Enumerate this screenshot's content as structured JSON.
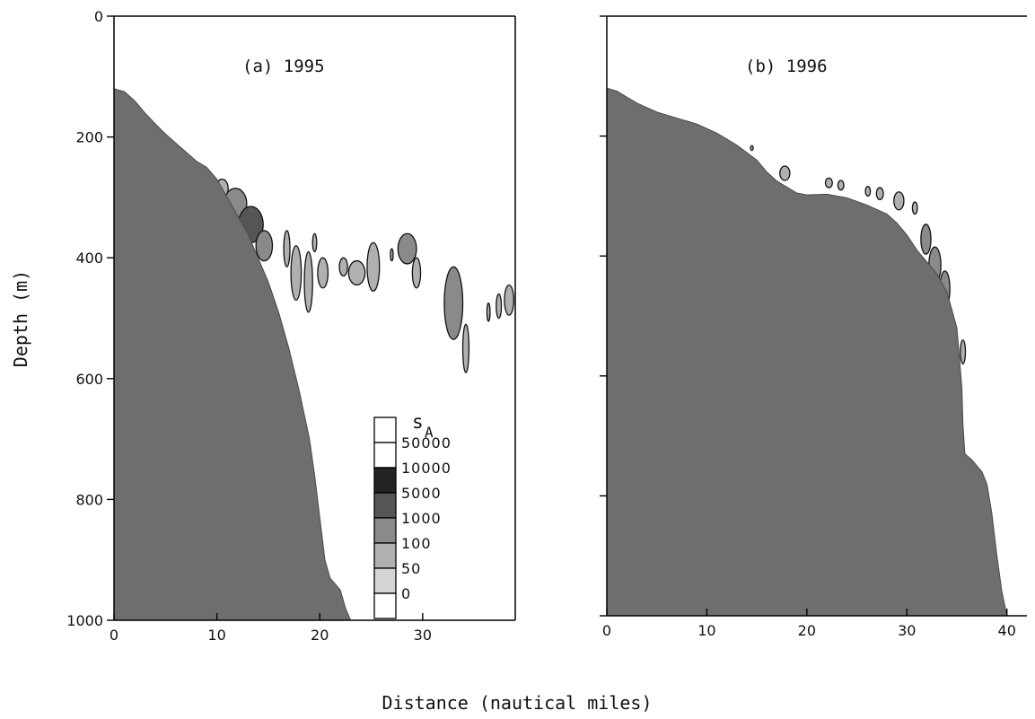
{
  "chart_data": [
    {
      "type": "area",
      "title": "(a) 1995",
      "xlabel": "Distance (nautical miles)",
      "ylabel": "Depth (m)",
      "xlim": [
        0,
        39
      ],
      "ylim": [
        0,
        1000
      ],
      "y_inverted": true,
      "x_ticks": [
        0,
        10,
        20,
        30
      ],
      "y_ticks": [
        0,
        200,
        400,
        600,
        800,
        1000
      ],
      "y_tick_labels": [
        "0",
        "200",
        "400",
        "600",
        "800",
        "1000"
      ],
      "grid": false,
      "seabed_color": "#6e6e6e",
      "seabed_profile": [
        {
          "x": 0,
          "y": 1000
        },
        {
          "x": 0,
          "y": 120
        },
        {
          "x": 1,
          "y": 125
        },
        {
          "x": 2,
          "y": 140
        },
        {
          "x": 3,
          "y": 160
        },
        {
          "x": 4,
          "y": 178
        },
        {
          "x": 5,
          "y": 195
        },
        {
          "x": 6,
          "y": 210
        },
        {
          "x": 7,
          "y": 225
        },
        {
          "x": 8,
          "y": 240
        },
        {
          "x": 9,
          "y": 250
        },
        {
          "x": 10,
          "y": 270
        },
        {
          "x": 11,
          "y": 300
        },
        {
          "x": 12,
          "y": 330
        },
        {
          "x": 13,
          "y": 360
        },
        {
          "x": 14,
          "y": 400
        },
        {
          "x": 15,
          "y": 440
        },
        {
          "x": 16,
          "y": 490
        },
        {
          "x": 17,
          "y": 550
        },
        {
          "x": 18,
          "y": 620
        },
        {
          "x": 19,
          "y": 700
        },
        {
          "x": 19.5,
          "y": 760
        },
        {
          "x": 20,
          "y": 830
        },
        {
          "x": 20.5,
          "y": 900
        },
        {
          "x": 21,
          "y": 930
        },
        {
          "x": 22,
          "y": 950
        },
        {
          "x": 22.5,
          "y": 980
        },
        {
          "x": 23,
          "y": 1000
        }
      ],
      "backscatter_patches": [
        {
          "x": 10.5,
          "y": 285,
          "rx": 0.6,
          "ry": 15,
          "level": 100
        },
        {
          "x": 11.8,
          "y": 310,
          "rx": 1.1,
          "ry": 25,
          "level": 1000
        },
        {
          "x": 13.3,
          "y": 345,
          "rx": 1.2,
          "ry": 30,
          "level": 5000
        },
        {
          "x": 14.6,
          "y": 380,
          "rx": 0.8,
          "ry": 25,
          "level": 1000
        },
        {
          "x": 16.8,
          "y": 385,
          "rx": 0.3,
          "ry": 30,
          "level": 100
        },
        {
          "x": 17.7,
          "y": 425,
          "rx": 0.5,
          "ry": 45,
          "level": 100
        },
        {
          "x": 18.9,
          "y": 440,
          "rx": 0.4,
          "ry": 50,
          "level": 100
        },
        {
          "x": 19.5,
          "y": 375,
          "rx": 0.2,
          "ry": 15,
          "level": 100
        },
        {
          "x": 20.3,
          "y": 425,
          "rx": 0.5,
          "ry": 25,
          "level": 100
        },
        {
          "x": 22.3,
          "y": 415,
          "rx": 0.4,
          "ry": 15,
          "level": 100
        },
        {
          "x": 23.6,
          "y": 425,
          "rx": 0.8,
          "ry": 20,
          "level": 100
        },
        {
          "x": 25.2,
          "y": 415,
          "rx": 0.6,
          "ry": 40,
          "level": 100
        },
        {
          "x": 27,
          "y": 395,
          "rx": 0.1,
          "ry": 10,
          "level": 100
        },
        {
          "x": 28.5,
          "y": 385,
          "rx": 0.9,
          "ry": 25,
          "level": 1000
        },
        {
          "x": 29.4,
          "y": 425,
          "rx": 0.4,
          "ry": 25,
          "level": 100
        },
        {
          "x": 33,
          "y": 475,
          "rx": 0.9,
          "ry": 60,
          "level": 1000
        },
        {
          "x": 34.2,
          "y": 550,
          "rx": 0.3,
          "ry": 40,
          "level": 100
        },
        {
          "x": 36.4,
          "y": 490,
          "rx": 0.15,
          "ry": 15,
          "level": 100
        },
        {
          "x": 37.4,
          "y": 480,
          "rx": 0.25,
          "ry": 20,
          "level": 100
        },
        {
          "x": 38.4,
          "y": 470,
          "rx": 0.45,
          "ry": 25,
          "level": 100
        }
      ],
      "legend": {
        "placement": "bottom-right",
        "title": "s",
        "title_subscript": "A",
        "entries": [
          {
            "label": "50000",
            "color": "#ffffff"
          },
          {
            "label": "10000",
            "color": "#232323"
          },
          {
            "label": "5000",
            "color": "#555555"
          },
          {
            "label": "1000",
            "color": "#8a8a8a"
          },
          {
            "label": "100",
            "color": "#b0b0b0"
          },
          {
            "label": "50",
            "color": "#d4d4d4"
          },
          {
            "label": "0",
            "color": "#ffffff"
          }
        ]
      }
    },
    {
      "type": "area",
      "title": "(b) 1996",
      "xlim": [
        0,
        42
      ],
      "ylim": [
        0,
        1000
      ],
      "y_inverted": true,
      "x_ticks": [
        0,
        10,
        20,
        30,
        40
      ],
      "y_ticks": [
        0,
        200,
        400,
        600,
        800,
        1000
      ],
      "grid": false,
      "seabed_color": "#6e6e6e",
      "seabed_profile": [
        {
          "x": 0,
          "y": 1000
        },
        {
          "x": 0,
          "y": 120
        },
        {
          "x": 1,
          "y": 125
        },
        {
          "x": 2,
          "y": 135
        },
        {
          "x": 3,
          "y": 145
        },
        {
          "x": 5,
          "y": 160
        },
        {
          "x": 7,
          "y": 170
        },
        {
          "x": 9,
          "y": 180
        },
        {
          "x": 11,
          "y": 195
        },
        {
          "x": 13,
          "y": 215
        },
        {
          "x": 15,
          "y": 240
        },
        {
          "x": 16,
          "y": 260
        },
        {
          "x": 17,
          "y": 275
        },
        {
          "x": 18,
          "y": 285
        },
        {
          "x": 19,
          "y": 295
        },
        {
          "x": 20,
          "y": 298
        },
        {
          "x": 22,
          "y": 297
        },
        {
          "x": 24,
          "y": 303
        },
        {
          "x": 26,
          "y": 315
        },
        {
          "x": 28,
          "y": 330
        },
        {
          "x": 29,
          "y": 345
        },
        {
          "x": 30,
          "y": 365
        },
        {
          "x": 31,
          "y": 390
        },
        {
          "x": 32,
          "y": 410
        },
        {
          "x": 33,
          "y": 430
        },
        {
          "x": 34,
          "y": 460
        },
        {
          "x": 34.5,
          "y": 490
        },
        {
          "x": 35,
          "y": 520
        },
        {
          "x": 35.2,
          "y": 560
        },
        {
          "x": 35.5,
          "y": 620
        },
        {
          "x": 35.6,
          "y": 680
        },
        {
          "x": 35.8,
          "y": 730
        },
        {
          "x": 36.5,
          "y": 740
        },
        {
          "x": 37.5,
          "y": 760
        },
        {
          "x": 38,
          "y": 780
        },
        {
          "x": 38.5,
          "y": 830
        },
        {
          "x": 39,
          "y": 900
        },
        {
          "x": 39.5,
          "y": 960
        },
        {
          "x": 40,
          "y": 1000
        }
      ],
      "backscatter_patches": [
        {
          "x": 14.5,
          "y": 220,
          "rx": 0.12,
          "ry": 4,
          "level": 100
        },
        {
          "x": 17.8,
          "y": 262,
          "rx": 0.5,
          "ry": 12,
          "level": 100
        },
        {
          "x": 22.2,
          "y": 278,
          "rx": 0.35,
          "ry": 8,
          "level": 100
        },
        {
          "x": 23.4,
          "y": 282,
          "rx": 0.3,
          "ry": 8,
          "level": 100
        },
        {
          "x": 26.1,
          "y": 292,
          "rx": 0.25,
          "ry": 8,
          "level": 100
        },
        {
          "x": 27.3,
          "y": 296,
          "rx": 0.35,
          "ry": 10,
          "level": 100
        },
        {
          "x": 29.2,
          "y": 308,
          "rx": 0.5,
          "ry": 15,
          "level": 100
        },
        {
          "x": 30.8,
          "y": 320,
          "rx": 0.25,
          "ry": 10,
          "level": 100
        },
        {
          "x": 31.9,
          "y": 372,
          "rx": 0.5,
          "ry": 25,
          "level": 1000
        },
        {
          "x": 32.8,
          "y": 415,
          "rx": 0.6,
          "ry": 30,
          "level": 1000
        },
        {
          "x": 33.8,
          "y": 455,
          "rx": 0.5,
          "ry": 30,
          "level": 1000
        },
        {
          "x": 35.6,
          "y": 560,
          "rx": 0.25,
          "ry": 20,
          "level": 100
        }
      ]
    }
  ]
}
